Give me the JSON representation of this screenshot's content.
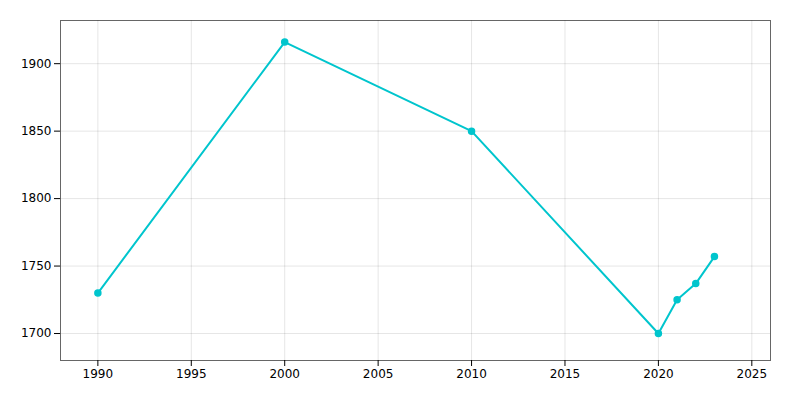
{
  "chart_data": {
    "type": "line",
    "x": [
      1990,
      2000,
      2010,
      2020,
      2021,
      2022,
      2023
    ],
    "values": [
      1730,
      1916,
      1850,
      1700,
      1725,
      1737,
      1757
    ],
    "color": "#00C5CD",
    "marker": "circle",
    "xlim": [
      1988,
      2026
    ],
    "ylim": [
      1680,
      1932
    ],
    "xticks": [
      1990,
      1995,
      2000,
      2005,
      2010,
      2015,
      2020,
      2025
    ],
    "yticks": [
      1700,
      1750,
      1800,
      1850,
      1900
    ],
    "grid": true
  }
}
